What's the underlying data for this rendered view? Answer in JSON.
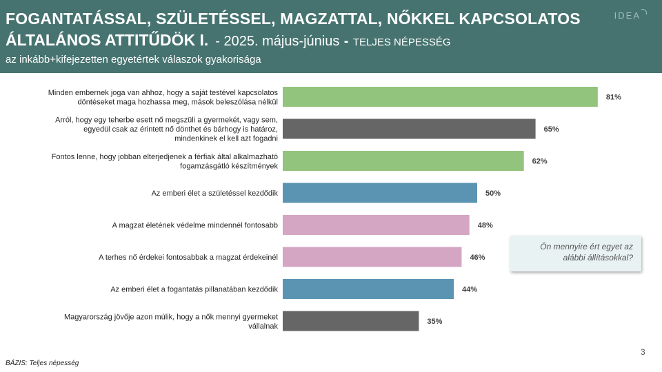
{
  "header": {
    "title_line1": "FOGANTATÁSSAL, SZÜLETÉSSEL, MAGZATTAL, NŐKKEL  KAPCSOLATOS",
    "title_line2": "ÁLTALÁNOS ATTITŰDÖK I.",
    "date": "- 2025. május-június",
    "separator": "-",
    "population": "TELJES NÉPESSÉG",
    "subtitle": "az inkább+kifejezetten egyetértek válaszok gyakorisága",
    "logo": "IDEA"
  },
  "question_box": "Ön mennyire ért egyet az alábbi állításokkal?",
  "page_number": "3",
  "basis": "BÁZIS: Teljes népesség",
  "colors": {
    "header_bg": "#467370",
    "green": "#93c47d",
    "gray": "#666666",
    "blue": "#5b94b3",
    "pink": "#d5a6c4"
  },
  "chart_data": {
    "type": "bar",
    "orientation": "horizontal",
    "xlim": [
      0,
      100
    ],
    "grid": false,
    "legend": "none",
    "unit": "%",
    "categories": [
      [
        "Minden embernek joga van ahhoz, hogy a saját testével kapcsolatos",
        "döntéseket maga hozhassa meg, mások beleszólása nélkül"
      ],
      [
        "Arról, hogy egy teherbe esett nő megszülі a gyermekét, vagy sem,",
        "egyedül csak az érintett nő dönthet és bárhogy is határoz,",
        "mindenkinek el kell azt fogadni"
      ],
      [
        "Fontos lenne, hogy jobban elterjedjenek a férfiak által alkalmazható",
        "fogamzásgátló készítmények"
      ],
      [
        "Az emberi élet a születéssel kezdődik"
      ],
      [
        "A magzat életének védelme mindennél fontosabb"
      ],
      [
        "A terhes nő érdekei fontosabbak a magzat érdekeinél"
      ],
      [
        "Az emberi élet a fogantatás pillanatában kezdődik"
      ],
      [
        "Magyarország jövője azon múlik, hogy a nők mennyi gyermeket",
        "vállalnak"
      ]
    ],
    "values": [
      81,
      65,
      62,
      50,
      48,
      46,
      44,
      35
    ],
    "value_labels": [
      "81%",
      "65%",
      "62%",
      "50%",
      "48%",
      "46%",
      "44%",
      "35%"
    ],
    "bar_colors": [
      "#93c47d",
      "#666666",
      "#93c47d",
      "#5b94b3",
      "#d5a6c4",
      "#d5a6c4",
      "#5b94b3",
      "#666666"
    ]
  }
}
